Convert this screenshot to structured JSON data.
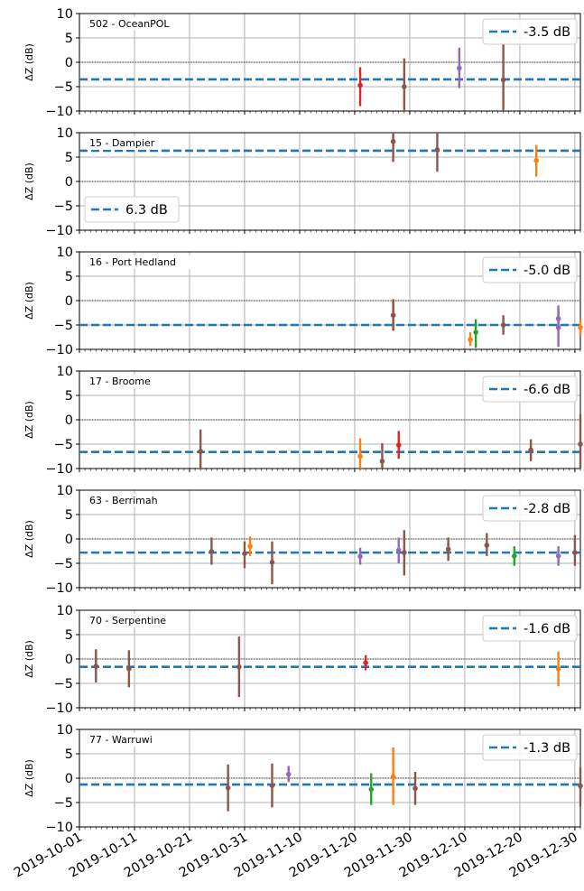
{
  "chart_data": {
    "type": "errorbar",
    "ylabel": "ΔZ (dB)",
    "ylim": [
      -10,
      10
    ],
    "yticks": [
      "10",
      "5",
      "0",
      "−5",
      "−10"
    ],
    "x_start": "2019-10-01",
    "x_end": "2019-12-31",
    "xtick_labels": [
      "2019-10-01",
      "2019-10-11",
      "2019-10-21",
      "2019-10-31",
      "2019-11-10",
      "2019-11-20",
      "2019-11-30",
      "2019-12-10",
      "2019-12-20",
      "2019-12-30"
    ],
    "grid": true,
    "colors": {
      "legend_line": "#1f77b4",
      "red": "#d62728",
      "brown": "#8c564b",
      "purple": "#9467bd",
      "orange": "#ff7f0e",
      "green": "#2ca02c"
    },
    "panels": [
      {
        "title": "502 - OceanPOL",
        "mean": -3.5,
        "legend_label": "-3.5 dB",
        "legend_pos": "top-right",
        "points": [
          {
            "date": "2019-11-21",
            "y": -4.7,
            "lo": -9.0,
            "hi": -1.0,
            "color": "red"
          },
          {
            "date": "2019-11-29",
            "y": -5.0,
            "lo": -10.0,
            "hi": 0.8,
            "color": "brown"
          },
          {
            "date": "2019-12-09",
            "y": -1.2,
            "lo": -5.3,
            "hi": 3.0,
            "color": "purple"
          },
          {
            "date": "2019-12-17",
            "y": -3.6,
            "lo": -10.0,
            "hi": 3.8,
            "color": "brown"
          }
        ]
      },
      {
        "title": "15 - Dampier",
        "mean": 6.3,
        "legend_label": "6.3 dB",
        "legend_pos": "bottom-left",
        "points": [
          {
            "date": "2019-11-27",
            "y": 8.2,
            "lo": 4.0,
            "hi": 10.0,
            "color": "brown"
          },
          {
            "date": "2019-12-05",
            "y": 6.5,
            "lo": 2.0,
            "hi": 10.0,
            "color": "brown"
          },
          {
            "date": "2019-12-23",
            "y": 4.3,
            "lo": 1.0,
            "hi": 7.5,
            "color": "orange"
          }
        ]
      },
      {
        "title": "16 - Port Hedland",
        "mean": -5.0,
        "legend_label": "-5.0 dB",
        "legend_pos": "top-right",
        "points": [
          {
            "date": "2019-11-27",
            "y": -3.0,
            "lo": -6.2,
            "hi": 0.3,
            "color": "orange"
          },
          {
            "date": "2019-11-27",
            "y": -3.0,
            "lo": -6.2,
            "hi": 0.3,
            "color": "brown"
          },
          {
            "date": "2019-12-11",
            "y": -8.0,
            "lo": -9.3,
            "hi": -6.5,
            "color": "orange"
          },
          {
            "date": "2019-12-12",
            "y": -6.5,
            "lo": -9.7,
            "hi": -3.8,
            "color": "green"
          },
          {
            "date": "2019-12-17",
            "y": -5.0,
            "lo": -7.0,
            "hi": -3.0,
            "color": "brown"
          },
          {
            "date": "2019-12-27",
            "y": -3.7,
            "lo": -6.2,
            "hi": -1.0,
            "color": "purple"
          },
          {
            "date": "2019-12-27",
            "y": -5.5,
            "lo": -9.5,
            "hi": -1.8,
            "color": "purple"
          },
          {
            "date": "2019-12-31",
            "y": -5.5,
            "lo": -7.0,
            "hi": -4.0,
            "color": "orange"
          }
        ]
      },
      {
        "title": "17 - Broome",
        "mean": -6.6,
        "legend_label": "-6.6 dB",
        "legend_pos": "top-right",
        "points": [
          {
            "date": "2019-10-23",
            "y": -6.5,
            "lo": -10.0,
            "hi": -2.0,
            "color": "brown"
          },
          {
            "date": "2019-11-21",
            "y": -7.5,
            "lo": -10.0,
            "hi": -3.8,
            "color": "orange"
          },
          {
            "date": "2019-11-25",
            "y": -8.5,
            "lo": -10.0,
            "hi": -4.8,
            "color": "brown"
          },
          {
            "date": "2019-11-28",
            "y": -5.2,
            "lo": -8.0,
            "hi": -2.3,
            "color": "red"
          },
          {
            "date": "2019-12-22",
            "y": -6.2,
            "lo": -8.5,
            "hi": -4.0,
            "color": "brown"
          },
          {
            "date": "2019-12-31",
            "y": -5.0,
            "lo": -10.0,
            "hi": 1.2,
            "color": "brown"
          }
        ]
      },
      {
        "title": "63 - Berrimah",
        "mean": -2.8,
        "legend_label": "-2.8 dB",
        "legend_pos": "top-right",
        "points": [
          {
            "date": "2019-10-25",
            "y": -2.6,
            "lo": -5.3,
            "hi": 0.3,
            "color": "brown"
          },
          {
            "date": "2019-10-31",
            "y": -3.0,
            "lo": -6.0,
            "hi": -0.5,
            "color": "brown"
          },
          {
            "date": "2019-11-01",
            "y": -1.5,
            "lo": -3.5,
            "hi": 0.5,
            "color": "orange"
          },
          {
            "date": "2019-11-05",
            "y": -4.8,
            "lo": -9.3,
            "hi": -0.5,
            "color": "brown"
          },
          {
            "date": "2019-11-21",
            "y": -3.6,
            "lo": -5.3,
            "hi": -1.8,
            "color": "purple"
          },
          {
            "date": "2019-11-28",
            "y": -2.3,
            "lo": -5.0,
            "hi": 0.3,
            "color": "purple"
          },
          {
            "date": "2019-11-29",
            "y": -2.8,
            "lo": -7.5,
            "hi": 1.8,
            "color": "brown"
          },
          {
            "date": "2019-12-07",
            "y": -2.1,
            "lo": -4.5,
            "hi": 0.3,
            "color": "brown"
          },
          {
            "date": "2019-12-14",
            "y": -1.3,
            "lo": -3.5,
            "hi": 1.2,
            "color": "brown"
          },
          {
            "date": "2019-12-19",
            "y": -3.5,
            "lo": -5.5,
            "hi": -1.5,
            "color": "green"
          },
          {
            "date": "2019-12-27",
            "y": -3.5,
            "lo": -5.5,
            "hi": -1.5,
            "color": "purple"
          },
          {
            "date": "2019-12-30",
            "y": -2.8,
            "lo": -5.5,
            "hi": 0.8,
            "color": "brown"
          }
        ]
      },
      {
        "title": "70 - Serpentine",
        "mean": -1.6,
        "legend_label": "-1.6 dB",
        "legend_pos": "top-right",
        "points": [
          {
            "date": "2019-10-04",
            "y": -1.5,
            "lo": -4.8,
            "hi": 2.0,
            "color": "brown"
          },
          {
            "date": "2019-10-10",
            "y": -2.0,
            "lo": -5.8,
            "hi": 1.8,
            "color": "brown"
          },
          {
            "date": "2019-10-30",
            "y": -1.6,
            "lo": -7.8,
            "hi": 4.6,
            "color": "brown"
          },
          {
            "date": "2019-11-22",
            "y": -0.8,
            "lo": -2.3,
            "hi": 0.8,
            "color": "red"
          },
          {
            "date": "2019-12-27",
            "y": -2.0,
            "lo": -5.6,
            "hi": 1.5,
            "color": "orange"
          }
        ]
      },
      {
        "title": "77 - Warruwi",
        "mean": -1.3,
        "legend_label": "-1.3 dB",
        "legend_pos": "top-right",
        "points": [
          {
            "date": "2019-10-28",
            "y": -2.0,
            "lo": -6.8,
            "hi": 2.8,
            "color": "brown"
          },
          {
            "date": "2019-11-05",
            "y": -1.5,
            "lo": -6.0,
            "hi": 3.0,
            "color": "brown"
          },
          {
            "date": "2019-11-08",
            "y": 0.8,
            "lo": -0.8,
            "hi": 2.5,
            "color": "purple"
          },
          {
            "date": "2019-11-23",
            "y": -2.3,
            "lo": -5.5,
            "hi": 1.0,
            "color": "green"
          },
          {
            "date": "2019-11-27",
            "y": 0.3,
            "lo": -5.5,
            "hi": 6.3,
            "color": "orange"
          },
          {
            "date": "2019-12-01",
            "y": -2.1,
            "lo": -5.5,
            "hi": 1.3,
            "color": "brown"
          },
          {
            "date": "2019-12-31",
            "y": -1.6,
            "lo": -5.8,
            "hi": 2.3,
            "color": "brown"
          }
        ]
      }
    ]
  }
}
